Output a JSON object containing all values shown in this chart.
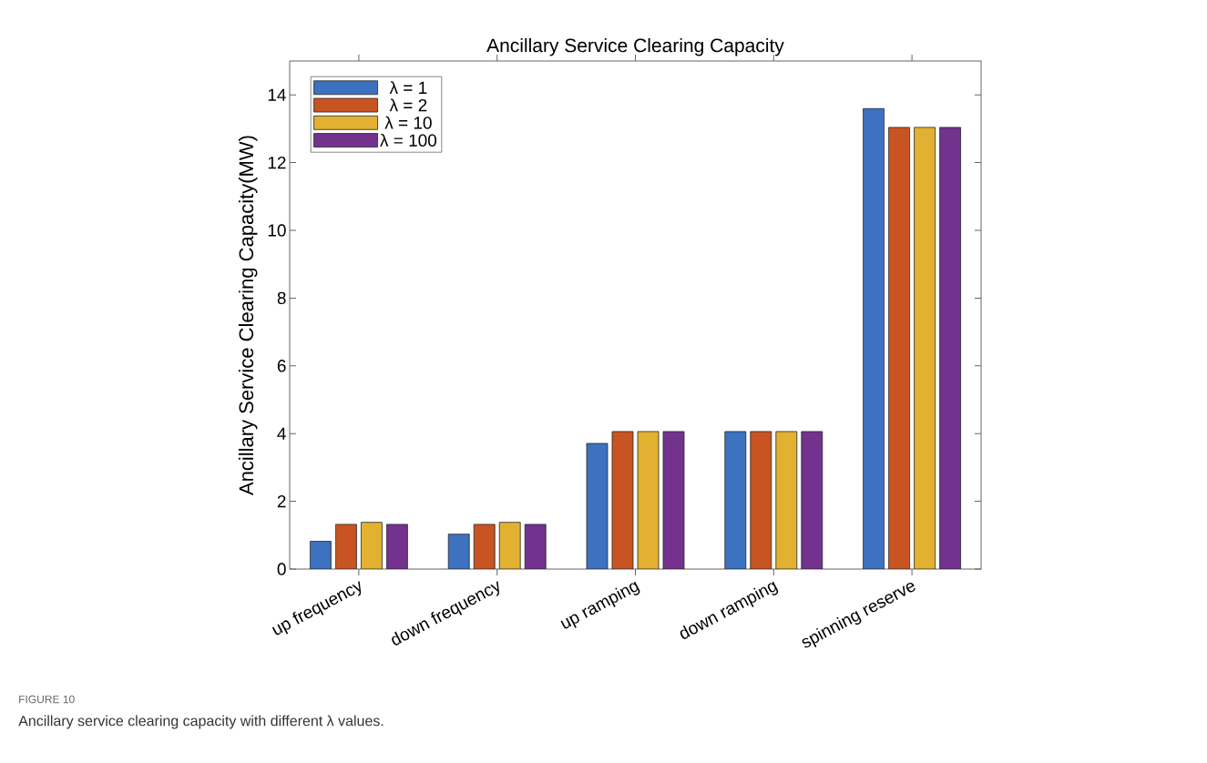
{
  "chart_data": {
    "type": "bar",
    "title": "Ancillary Service Clearing Capacity",
    "ylabel": "Ancillary Service Clearing Capacity(MW)",
    "categories": [
      "up frequency",
      "down frequency",
      "up ramping",
      "down ramping",
      "spinning reserve"
    ],
    "series": [
      {
        "name": "λ = 1",
        "color": "#3d72c0",
        "values": [
          0.82,
          1.03,
          3.71,
          4.06,
          13.6
        ]
      },
      {
        "name": "λ = 2",
        "color": "#c85421",
        "values": [
          1.32,
          1.32,
          4.06,
          4.06,
          13.04
        ]
      },
      {
        "name": "λ = 10",
        "color": "#e3b132",
        "values": [
          1.38,
          1.38,
          4.06,
          4.06,
          13.04
        ]
      },
      {
        "name": "λ = 100",
        "color": "#72328e",
        "values": [
          1.32,
          1.32,
          4.06,
          4.06,
          13.04
        ]
      }
    ],
    "ylim": [
      0,
      15
    ],
    "yticks": [
      0,
      2,
      4,
      6,
      8,
      10,
      12,
      14
    ],
    "grid": false,
    "legend": "top left",
    "annotations": [
      "FIGURE 10",
      "Ancillary service clearing capacity with different λ values."
    ]
  }
}
